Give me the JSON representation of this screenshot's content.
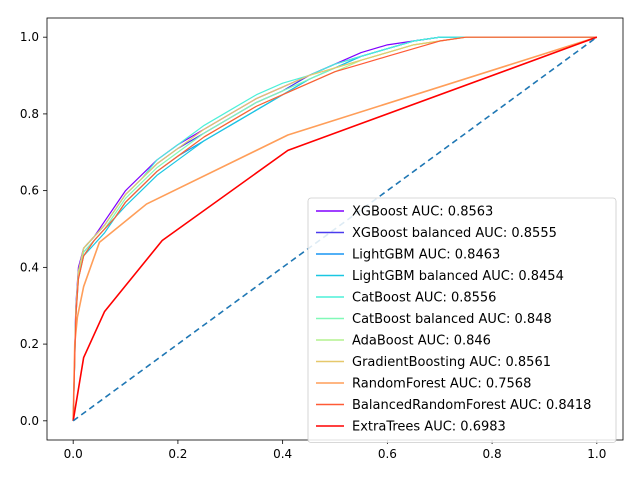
{
  "chart_data": {
    "type": "line",
    "title": "",
    "xlabel": "",
    "ylabel": "",
    "xlim": [
      -0.05,
      1.05
    ],
    "ylim": [
      -0.05,
      1.05
    ],
    "xticks": [
      0.0,
      0.2,
      0.4,
      0.6,
      0.8,
      1.0
    ],
    "xtick_labels": [
      "0.0",
      "0.2",
      "0.4",
      "0.6",
      "0.8",
      "1.0"
    ],
    "yticks": [
      0.0,
      0.2,
      0.4,
      0.6,
      0.8,
      1.0
    ],
    "ytick_labels": [
      "0.0",
      "0.2",
      "0.4",
      "0.6",
      "0.8",
      "1.0"
    ],
    "grid": false,
    "legend_position": "lower-right",
    "series": [
      {
        "name": "XGBoost AUC: 0.8563",
        "color": "#8000ff",
        "x": [
          0,
          0.005,
          0.01,
          0.02,
          0.04,
          0.06,
          0.08,
          0.1,
          0.13,
          0.16,
          0.2,
          0.25,
          0.3,
          0.35,
          0.4,
          0.45,
          0.5,
          0.55,
          0.6,
          0.65,
          0.7,
          0.75,
          0.8,
          1.0
        ],
        "y": [
          0,
          0.3,
          0.4,
          0.45,
          0.48,
          0.52,
          0.56,
          0.6,
          0.64,
          0.68,
          0.72,
          0.76,
          0.8,
          0.84,
          0.87,
          0.9,
          0.93,
          0.96,
          0.98,
          0.99,
          1.0,
          1.0,
          1.0,
          1.0
        ]
      },
      {
        "name": "XGBoost balanced AUC: 0.8555",
        "color": "#4a3bee",
        "x": [
          0,
          0.005,
          0.01,
          0.02,
          0.04,
          0.06,
          0.08,
          0.1,
          0.13,
          0.16,
          0.2,
          0.25,
          0.3,
          0.35,
          0.4,
          0.45,
          0.5,
          0.55,
          0.6,
          0.65,
          0.7,
          0.75,
          0.8,
          1.0
        ],
        "y": [
          0,
          0.29,
          0.39,
          0.45,
          0.48,
          0.51,
          0.55,
          0.59,
          0.63,
          0.67,
          0.71,
          0.75,
          0.79,
          0.83,
          0.86,
          0.9,
          0.93,
          0.95,
          0.97,
          0.99,
          1.0,
          1.0,
          1.0,
          1.0
        ]
      },
      {
        "name": "LightGBM AUC: 0.8463",
        "color": "#1996f3",
        "x": [
          0,
          0.005,
          0.01,
          0.02,
          0.04,
          0.06,
          0.08,
          0.1,
          0.13,
          0.16,
          0.2,
          0.25,
          0.3,
          0.35,
          0.4,
          0.45,
          0.5,
          0.55,
          0.6,
          0.65,
          0.7,
          0.75,
          0.8,
          1.0
        ],
        "y": [
          0,
          0.28,
          0.38,
          0.44,
          0.47,
          0.5,
          0.53,
          0.57,
          0.61,
          0.65,
          0.69,
          0.73,
          0.77,
          0.81,
          0.85,
          0.89,
          0.92,
          0.95,
          0.97,
          0.99,
          1.0,
          1.0,
          1.0,
          1.0
        ]
      },
      {
        "name": "LightGBM balanced AUC: 0.8454",
        "color": "#1ac7e2",
        "x": [
          0,
          0.005,
          0.01,
          0.02,
          0.04,
          0.06,
          0.08,
          0.1,
          0.13,
          0.16,
          0.2,
          0.25,
          0.3,
          0.35,
          0.4,
          0.45,
          0.5,
          0.55,
          0.6,
          0.65,
          0.7,
          0.75,
          0.8,
          1.0
        ],
        "y": [
          0,
          0.27,
          0.37,
          0.43,
          0.46,
          0.49,
          0.53,
          0.56,
          0.6,
          0.64,
          0.68,
          0.73,
          0.77,
          0.81,
          0.85,
          0.89,
          0.92,
          0.95,
          0.97,
          0.99,
          1.0,
          1.0,
          1.0,
          1.0
        ]
      },
      {
        "name": "CatBoost AUC: 0.8556",
        "color": "#4df0d9",
        "x": [
          0,
          0.005,
          0.01,
          0.02,
          0.04,
          0.06,
          0.08,
          0.1,
          0.13,
          0.16,
          0.2,
          0.25,
          0.3,
          0.35,
          0.4,
          0.45,
          0.5,
          0.55,
          0.6,
          0.65,
          0.7,
          0.75,
          0.8,
          1.0
        ],
        "y": [
          0,
          0.29,
          0.39,
          0.45,
          0.48,
          0.51,
          0.55,
          0.59,
          0.63,
          0.68,
          0.72,
          0.77,
          0.81,
          0.85,
          0.88,
          0.9,
          0.93,
          0.95,
          0.97,
          0.99,
          1.0,
          1.0,
          1.0,
          1.0
        ]
      },
      {
        "name": "CatBoost balanced AUC: 0.848",
        "color": "#81f9b8",
        "x": [
          0,
          0.005,
          0.01,
          0.02,
          0.04,
          0.06,
          0.08,
          0.1,
          0.13,
          0.16,
          0.2,
          0.25,
          0.3,
          0.35,
          0.4,
          0.45,
          0.5,
          0.55,
          0.6,
          0.65,
          0.7,
          0.75,
          0.8,
          1.0
        ],
        "y": [
          0,
          0.28,
          0.38,
          0.44,
          0.47,
          0.5,
          0.54,
          0.58,
          0.62,
          0.66,
          0.7,
          0.75,
          0.79,
          0.83,
          0.86,
          0.89,
          0.92,
          0.94,
          0.96,
          0.98,
          0.99,
          1.0,
          1.0,
          1.0
        ]
      },
      {
        "name": "AdaBoost AUC: 0.846",
        "color": "#b3f28f",
        "x": [
          0,
          0.005,
          0.01,
          0.02,
          0.04,
          0.06,
          0.08,
          0.1,
          0.13,
          0.16,
          0.2,
          0.25,
          0.3,
          0.35,
          0.4,
          0.45,
          0.5,
          0.55,
          0.6,
          0.65,
          0.7,
          0.75,
          0.8,
          1.0
        ],
        "y": [
          0,
          0.27,
          0.37,
          0.43,
          0.47,
          0.5,
          0.53,
          0.57,
          0.61,
          0.65,
          0.69,
          0.74,
          0.78,
          0.82,
          0.85,
          0.88,
          0.91,
          0.94,
          0.96,
          0.98,
          0.99,
          1.0,
          1.0,
          1.0
        ]
      },
      {
        "name": "GradientBoosting AUC: 0.8561",
        "color": "#e6c86b",
        "x": [
          0,
          0.005,
          0.01,
          0.02,
          0.04,
          0.06,
          0.08,
          0.1,
          0.13,
          0.16,
          0.2,
          0.25,
          0.3,
          0.35,
          0.4,
          0.45,
          0.5,
          0.55,
          0.6,
          0.65,
          0.7,
          0.75,
          0.8,
          1.0
        ],
        "y": [
          0,
          0.29,
          0.39,
          0.45,
          0.48,
          0.51,
          0.55,
          0.59,
          0.63,
          0.67,
          0.71,
          0.76,
          0.8,
          0.84,
          0.87,
          0.9,
          0.92,
          0.94,
          0.96,
          0.98,
          0.99,
          1.0,
          1.0,
          1.0
        ]
      },
      {
        "name": "RandomForest AUC: 0.7568",
        "color": "#ff9e59",
        "x": [
          0,
          0.003,
          0.008,
          0.02,
          0.05,
          0.14,
          0.41,
          1.0
        ],
        "y": [
          0,
          0.2,
          0.27,
          0.35,
          0.465,
          0.565,
          0.745,
          1.0
        ]
      },
      {
        "name": "BalancedRandomForest AUC: 0.8418",
        "color": "#ff5a36",
        "x": [
          0,
          0.005,
          0.01,
          0.02,
          0.04,
          0.06,
          0.08,
          0.1,
          0.13,
          0.16,
          0.2,
          0.25,
          0.3,
          0.35,
          0.4,
          0.45,
          0.5,
          0.55,
          0.6,
          0.65,
          0.7,
          0.75,
          0.8,
          1.0
        ],
        "y": [
          0,
          0.27,
          0.37,
          0.43,
          0.47,
          0.5,
          0.53,
          0.57,
          0.61,
          0.65,
          0.69,
          0.74,
          0.78,
          0.82,
          0.85,
          0.88,
          0.91,
          0.93,
          0.95,
          0.97,
          0.99,
          1.0,
          1.0,
          1.0
        ]
      },
      {
        "name": "ExtraTrees AUC: 0.6983",
        "color": "#ff0000",
        "x": [
          0,
          0.02,
          0.06,
          0.17,
          0.41,
          1.0
        ],
        "y": [
          0,
          0.165,
          0.285,
          0.47,
          0.705,
          1.0
        ]
      }
    ],
    "reference_line": {
      "x": [
        0,
        1
      ],
      "y": [
        0,
        1
      ],
      "color": "#1f77b4",
      "style": "dashed"
    }
  }
}
